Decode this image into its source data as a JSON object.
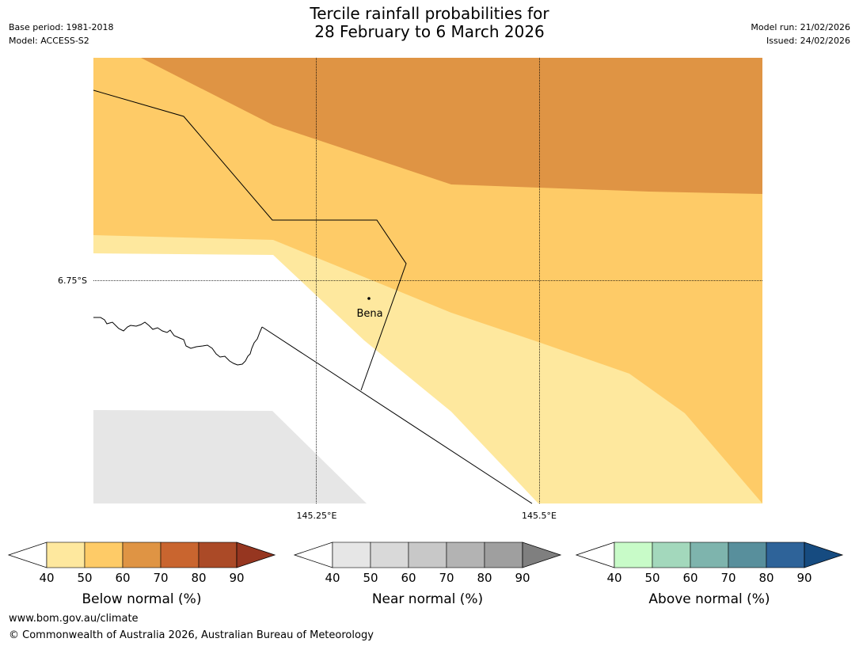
{
  "header": {
    "title_line1": "Tercile rainfall probabilities for",
    "title_line2": "28 February to 6 March 2026",
    "base_period": "Base period: 1981-2018",
    "model": "Model: ACCESS-S2",
    "model_run": "Model run: 21/02/2026",
    "issued": "Issued: 24/02/2026"
  },
  "map": {
    "lat_label": "6.75°S",
    "lon_labels": [
      "145.25°E",
      "145.5°E"
    ],
    "place_label": "Bena",
    "colors": {
      "below_40_50": "#fee89e",
      "below_50_60": "#fecb67",
      "below_60_70": "#df9444",
      "near_40_50": "#e6e6e6",
      "land_background": "#ffffff"
    }
  },
  "legends": [
    {
      "title": "Below normal (%)",
      "ticks": [
        "40",
        "50",
        "60",
        "70",
        "80",
        "90"
      ],
      "colors": [
        "#ffffff",
        "#fee89e",
        "#fecb67",
        "#df9444",
        "#c9652f",
        "#ab4a27",
        "#963620"
      ]
    },
    {
      "title": "Near normal (%)",
      "ticks": [
        "40",
        "50",
        "60",
        "70",
        "80",
        "90"
      ],
      "colors": [
        "#ffffff",
        "#e6e6e6",
        "#d9d9d9",
        "#c8c8c8",
        "#b3b3b3",
        "#9f9f9f",
        "#7f7f7f"
      ]
    },
    {
      "title": "Above normal (%)",
      "ticks": [
        "40",
        "50",
        "60",
        "70",
        "80",
        "90"
      ],
      "colors": [
        "#ffffff",
        "#c8fbc8",
        "#a3d8bc",
        "#7eb4ad",
        "#588f9c",
        "#2e6399",
        "#164b80"
      ]
    }
  ],
  "footer": {
    "url": "www.bom.gov.au/climate",
    "copyright": "© Commonwealth of Australia 2026, Australian Bureau of Meteorology"
  }
}
